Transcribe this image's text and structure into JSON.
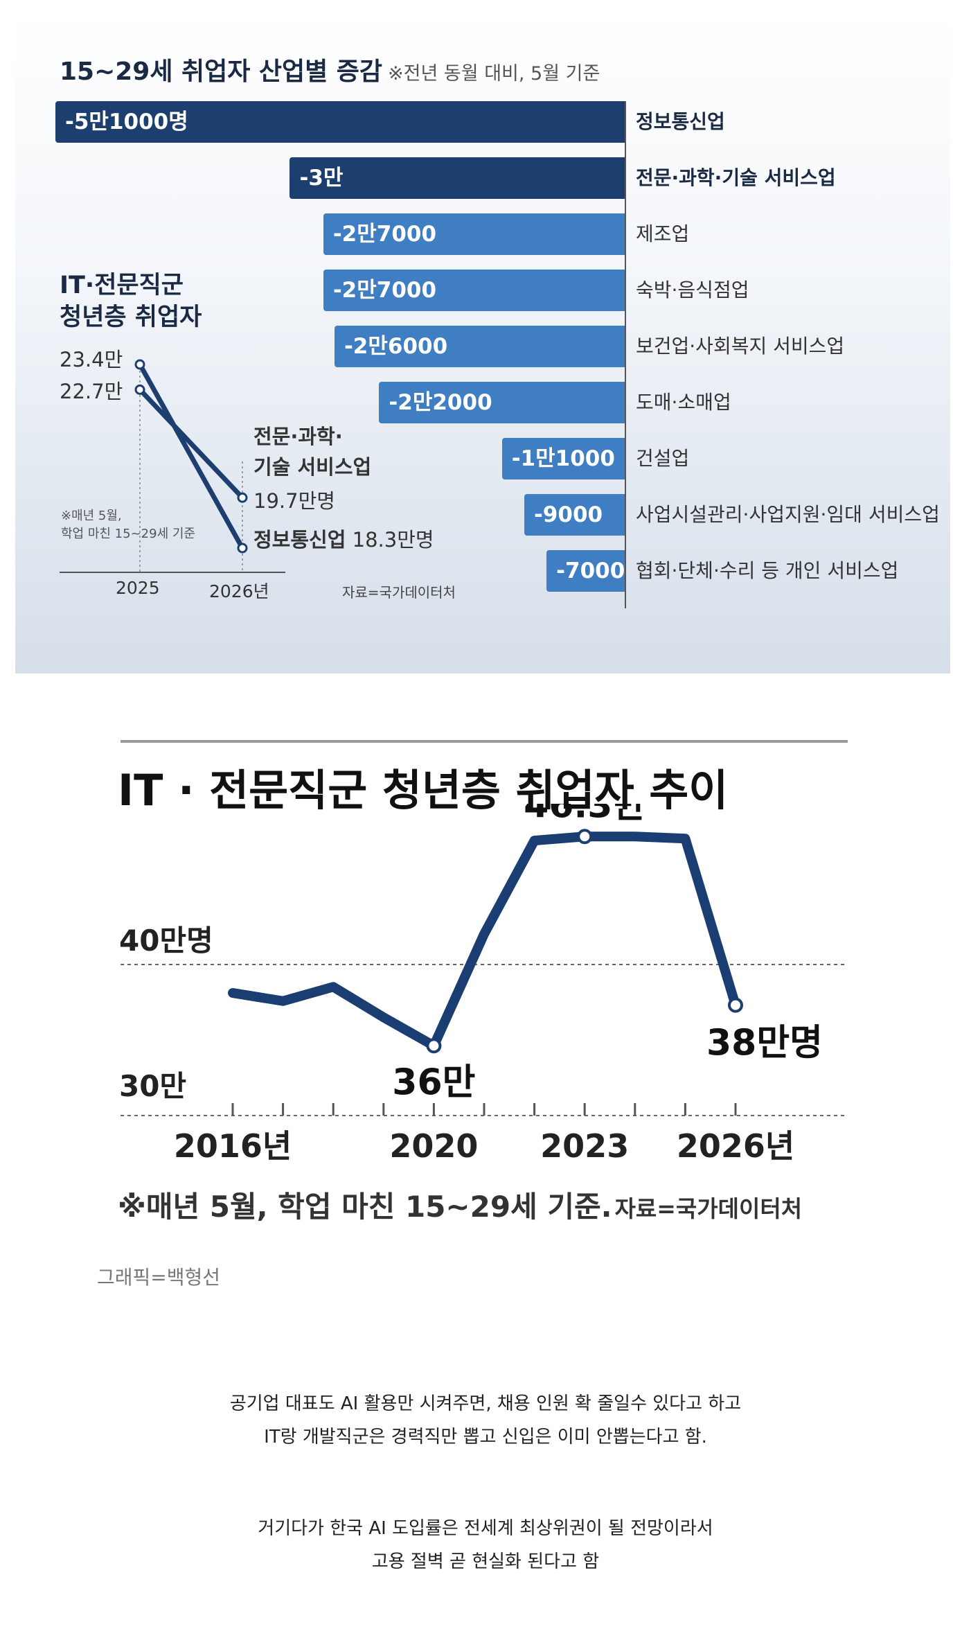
{
  "chart_data": [
    {
      "type": "bar",
      "title": "15~29세 취업자 산업별 증감",
      "subtitle": "※전년 동월 대비, 5월 기준",
      "categories": [
        "정보통신업",
        "전문·과학·기술 서비스업",
        "제조업",
        "숙박·음식점업",
        "보건업·사회복지 서비스업",
        "도매·소매업",
        "건설업",
        "사업시설관리·사업지원·임대 서비스업",
        "협회·단체·수리 등 개인 서비스업"
      ],
      "values": [
        -51000,
        -30000,
        -27000,
        -27000,
        -26000,
        -22000,
        -11000,
        -9000,
        -7000
      ],
      "labels": [
        "-5만1000명",
        "-3만",
        "-2만7000",
        "-2만7000",
        "-2만6000",
        "-2만2000",
        "-1만1000",
        "-9000",
        "-7000"
      ],
      "colors": [
        "#1d3f70",
        "#1d3f70",
        "#3f7ec2",
        "#3f7ec2",
        "#3f7ec2",
        "#3f7ec2",
        "#3f7ec2",
        "#3f7ec2",
        "#3f7ec2"
      ],
      "bold": [
        true,
        true,
        false,
        false,
        false,
        false,
        false,
        false,
        false
      ],
      "source": "자료=국가데이터처"
    },
    {
      "type": "line",
      "title": "IT·전문직군 청년층 취업자",
      "x": [
        "2025",
        "2026년"
      ],
      "series": [
        {
          "name": "전문·과학·기술 서비스업",
          "values": [
            22.7,
            19.7
          ],
          "start_label": "22.7만",
          "end_label": "19.7만명"
        },
        {
          "name": "정보통신업",
          "values": [
            23.4,
            18.3
          ],
          "start_label": "23.4만",
          "end_label": "18.3만명"
        }
      ],
      "footnote": [
        "※매년 5월,",
        "학업 마친 15~29세 기준"
      ]
    },
    {
      "type": "line",
      "title": "IT · 전문직군 청년층 취업자 추이",
      "x": [
        2016,
        2017,
        2018,
        2019,
        2020,
        2021,
        2022,
        2023,
        2024,
        2025,
        2026
      ],
      "x_tick_labels": [
        "2016년",
        "2020",
        "2023",
        "2026년"
      ],
      "x_tick_years": [
        2016,
        2020,
        2023,
        2026
      ],
      "series": [
        {
          "values": [
            38.6,
            38.2,
            38.9,
            37.4,
            36.0,
            41.5,
            46.1,
            46.3,
            46.3,
            46.2,
            38.0
          ]
        }
      ],
      "ylim": [
        30,
        46.3
      ],
      "reference_lines": [
        {
          "value": 40,
          "label": "40만명"
        },
        {
          "value": 30,
          "label": "30만"
        }
      ],
      "point_labels": [
        {
          "year": 2020,
          "value": 36.0,
          "label": "36만"
        },
        {
          "year": 2023,
          "value": 46.3,
          "label": "46.3만"
        },
        {
          "year": 2026,
          "value": 38.0,
          "label": "38만명"
        }
      ],
      "line_color": "#1a3d72"
    }
  ],
  "footnote2": "※매년 5월, 학업 마친 15~29세 기준.",
  "source2": "자료=국가데이터처",
  "credit": "그래픽=백형선",
  "paragraphs": [
    "공기업 대표도 AI 활용만 시켜주면, 채용 인원 확 줄일수 있다고 하고",
    "IT랑 개발직군은 경력직만 뽑고 신입은 이미 안뽑는다고 함.",
    "거기다가 한국 AI 도입률은 전세계 최상위권이 될 전망이라서",
    "고용 절벽 곧 현실화 된다고 함"
  ]
}
